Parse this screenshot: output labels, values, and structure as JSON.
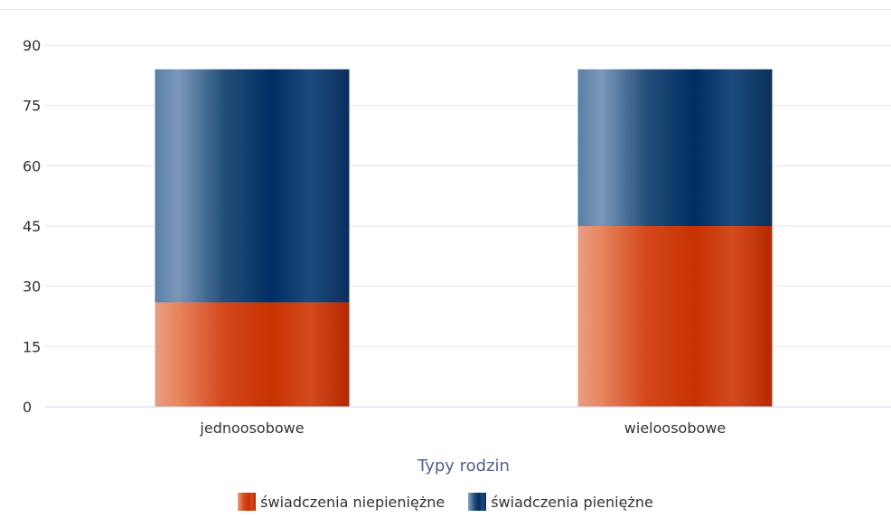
{
  "chart_data": {
    "type": "bar",
    "stacked": true,
    "title": "",
    "xlabel": "Typy rodzin",
    "ylabel": "",
    "categories": [
      "jednoosobowe",
      "wieloosobowe"
    ],
    "series": [
      {
        "name": "świadczenia niepieniężne",
        "values": [
          26,
          45
        ],
        "color": "#c73200"
      },
      {
        "name": "świadczenia pieniężne",
        "values": [
          58,
          39
        ],
        "color": "#002e63"
      }
    ],
    "ylim": [
      0,
      90
    ],
    "yticks": [
      "0",
      "15",
      "30",
      "45",
      "60",
      "75",
      "90"
    ],
    "grid": true,
    "legend": "bottom"
  }
}
